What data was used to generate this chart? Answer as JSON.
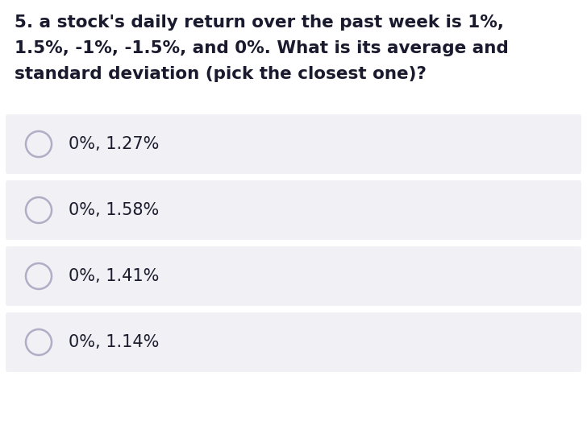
{
  "question_lines": [
    "5. a stock's daily return over the past week is 1%,",
    "1.5%, -1%, -1.5%, and 0%. What is its average and",
    "standard deviation (pick the closest one)?"
  ],
  "options": [
    "0%, 1.27%",
    "0%, 1.58%",
    "0%, 1.41%",
    "0%, 1.14%"
  ],
  "bg_color": "#ffffff",
  "option_bg_color": "#f0f0f5",
  "question_color": "#1a1a2e",
  "option_text_color": "#1c1c2e",
  "circle_edge_color": "#b0adc5",
  "circle_fill_color": "#f0f0f5",
  "question_fontsize": 15.5,
  "option_fontsize": 15.0,
  "fig_width": 7.28,
  "fig_height": 5.44,
  "dpi": 100
}
